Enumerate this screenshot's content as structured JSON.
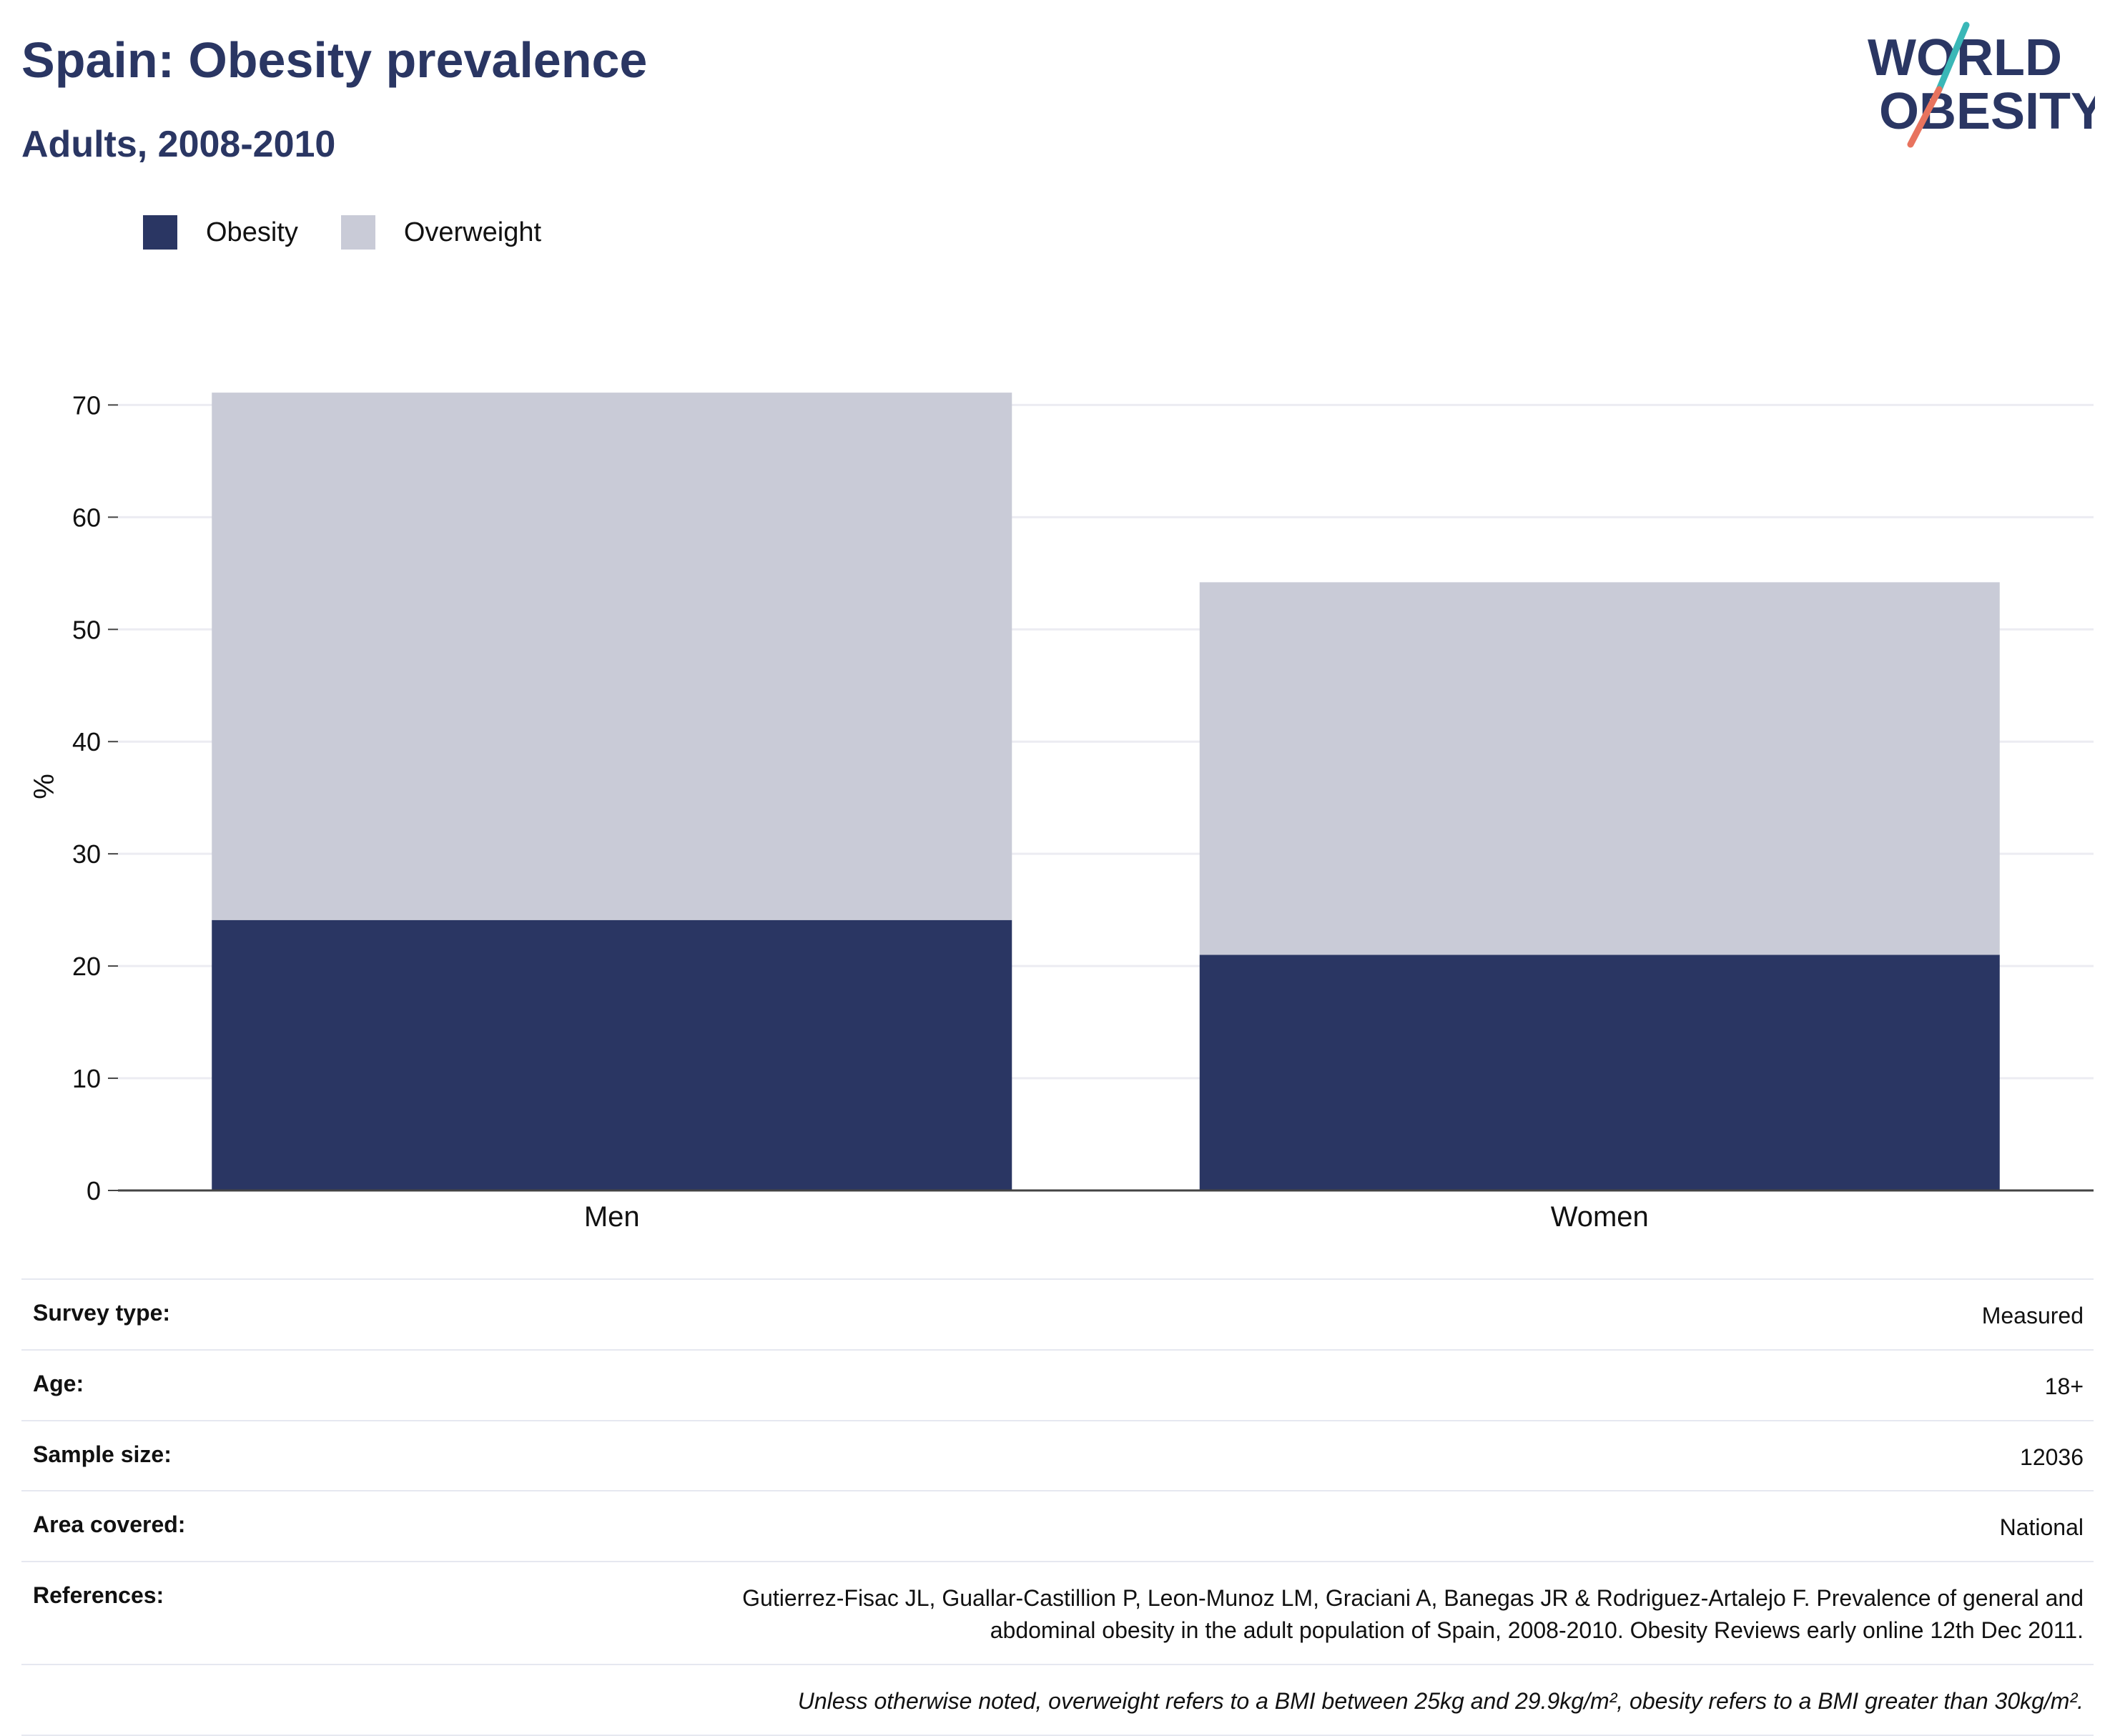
{
  "header": {
    "title": "Spain: Obesity prevalence",
    "subtitle": "Adults, 2008-2010"
  },
  "logo": {
    "line1": "WORLD",
    "line2": "OBESITY",
    "colors": {
      "text": "#2a3663",
      "slash_top": "#3ab7b7",
      "slash_bottom": "#e8735e"
    }
  },
  "colors": {
    "obesity": "#2a3663",
    "overweight": "#c9cbd7",
    "axis": "#444444",
    "grid": "#ececf2"
  },
  "chart_data": {
    "type": "bar",
    "stacked": true,
    "categories": [
      "Men",
      "Women"
    ],
    "series": [
      {
        "name": "Obesity",
        "values": [
          24.1,
          21.0
        ]
      },
      {
        "name": "Overweight",
        "values": [
          47.0,
          33.2
        ]
      }
    ],
    "ylabel": "%",
    "ylim": [
      0,
      72
    ],
    "yticks": [
      0,
      10,
      20,
      30,
      40,
      50,
      60,
      70
    ],
    "grid": true,
    "legend": "top-left"
  },
  "details": {
    "rows": [
      {
        "label": "Survey type:",
        "value": "Measured"
      },
      {
        "label": "Age:",
        "value": "18+"
      },
      {
        "label": "Sample size:",
        "value": "12036"
      },
      {
        "label": "Area covered:",
        "value": "National"
      },
      {
        "label": "References:",
        "value": "Gutierrez-Fisac JL, Guallar-Castillion P, Leon-Munoz LM, Graciani A, Banegas JR & Rodriguez-Artalejo F. Prevalence of general and abdominal obesity in the adult population of Spain, 2008-2010. Obesity Reviews early online 12th Dec 2011."
      }
    ],
    "note": "Unless otherwise noted, overweight refers to a BMI between 25kg and 29.9kg/m², obesity refers to a BMI greater than 30kg/m²."
  }
}
